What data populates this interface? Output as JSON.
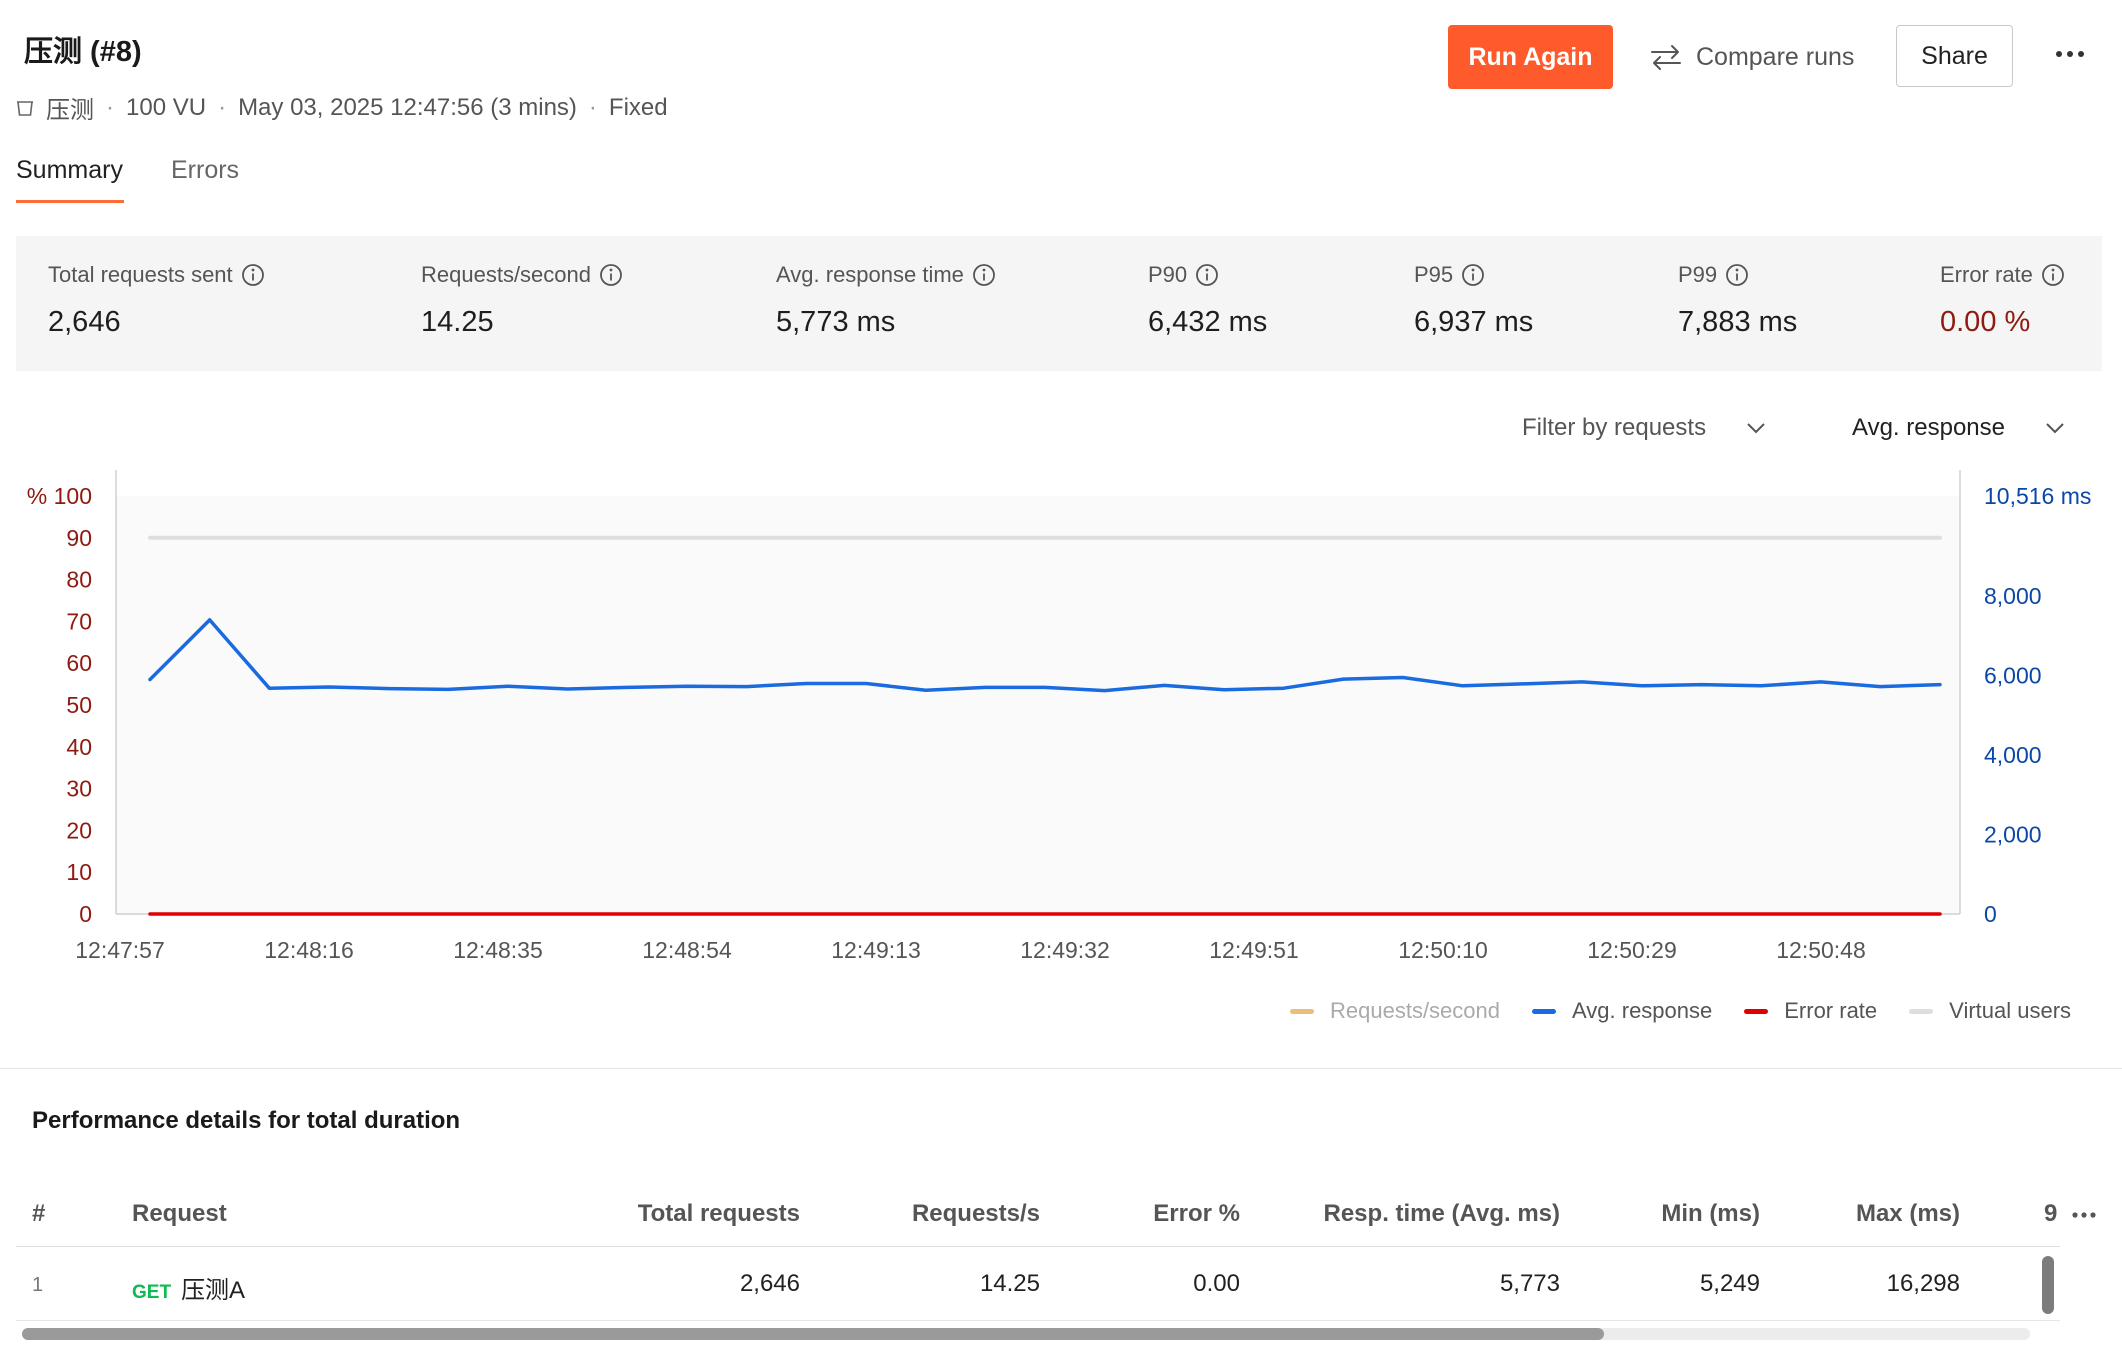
{
  "header": {
    "title": "压测 (#8)",
    "collection": "压测",
    "vu": "100 VU",
    "datetime": "May 03, 2025 12:47:56 (3 mins)",
    "profile": "Fixed",
    "run_again_label": "Run Again",
    "compare_label": "Compare runs",
    "share_label": "Share"
  },
  "tabs": [
    {
      "label": "Summary",
      "active": true
    },
    {
      "label": "Errors",
      "active": false
    }
  ],
  "stats": [
    {
      "label": "Total requests sent",
      "value": "2,646"
    },
    {
      "label": "Requests/second",
      "value": "14.25"
    },
    {
      "label": "Avg. response time",
      "value": "5,773 ms"
    },
    {
      "label": "P90",
      "value": "6,432 ms"
    },
    {
      "label": "P95",
      "value": "6,937 ms"
    },
    {
      "label": "P99",
      "value": "7,883 ms"
    },
    {
      "label": "Error rate",
      "value": "0.00 %"
    }
  ],
  "filters": {
    "requests_label": "Filter by requests",
    "metric_label": "Avg. response"
  },
  "chart_data": {
    "type": "line",
    "left_axis": {
      "ticks": [
        "% 100",
        "90",
        "80",
        "70",
        "60",
        "50",
        "40",
        "30",
        "20",
        "10",
        "0"
      ],
      "ylim": [
        0,
        100
      ],
      "color": "#8e1a10"
    },
    "right_axis": {
      "ticks": [
        "10,516 ms",
        "8,000",
        "6,000",
        "4,000",
        "2,000",
        "0"
      ],
      "tick_values": [
        10516,
        8000,
        6000,
        4000,
        2000,
        0
      ],
      "ylim": [
        0,
        10516
      ],
      "color": "#0b47a8"
    },
    "x_ticks": [
      "12:47:57",
      "12:48:16",
      "12:48:35",
      "12:48:54",
      "12:49:13",
      "12:49:32",
      "12:49:51",
      "12:50:10",
      "12:50:29",
      "12:50:48"
    ],
    "grid": false,
    "series": [
      {
        "name": "Requests/second",
        "color": "#e8c07a",
        "axis": "right",
        "values": []
      },
      {
        "name": "Avg. response",
        "color": "#1a6ae0",
        "axis": "right",
        "values": [
          5900,
          7400,
          5680,
          5710,
          5670,
          5650,
          5730,
          5660,
          5700,
          5730,
          5720,
          5800,
          5800,
          5630,
          5700,
          5700,
          5620,
          5750,
          5640,
          5680,
          5910,
          5950,
          5740,
          5790,
          5840,
          5740,
          5770,
          5740,
          5840,
          5720,
          5770
        ]
      },
      {
        "name": "Error rate",
        "color": "#e00000",
        "axis": "left",
        "values": [
          0,
          0,
          0,
          0,
          0,
          0,
          0,
          0,
          0,
          0,
          0,
          0,
          0,
          0,
          0,
          0,
          0,
          0,
          0,
          0,
          0,
          0,
          0,
          0,
          0,
          0,
          0,
          0,
          0,
          0,
          0
        ]
      },
      {
        "name": "Virtual users",
        "color": "#dedede",
        "axis": "left",
        "values": [
          90,
          90,
          90,
          90,
          90,
          90,
          90,
          90,
          90,
          90,
          90,
          90,
          90,
          90,
          90,
          90,
          90,
          90,
          90,
          90,
          90,
          90,
          90,
          90,
          90,
          90,
          90,
          90,
          90,
          90,
          90
        ]
      }
    ]
  },
  "legend": [
    {
      "label": "Requests/second",
      "color": "#e8c07a",
      "muted": true
    },
    {
      "label": "Avg. response",
      "color": "#1a6ae0",
      "muted": false
    },
    {
      "label": "Error rate",
      "color": "#e00000",
      "muted": false
    },
    {
      "label": "Virtual users",
      "color": "#dedede",
      "muted": false
    }
  ],
  "performance": {
    "title": "Performance details for total duration",
    "columns": [
      "#",
      "Request",
      "Total requests",
      "Requests/s",
      "Error %",
      "Resp. time (Avg. ms)",
      "Min (ms)",
      "Max (ms)",
      "9"
    ],
    "rows": [
      {
        "index": "1",
        "method": "GET",
        "name": "压测A",
        "total": "2,646",
        "rps": "14.25",
        "error": "0.00",
        "avg": "5,773",
        "min": "5,249",
        "max": "16,298"
      }
    ]
  }
}
